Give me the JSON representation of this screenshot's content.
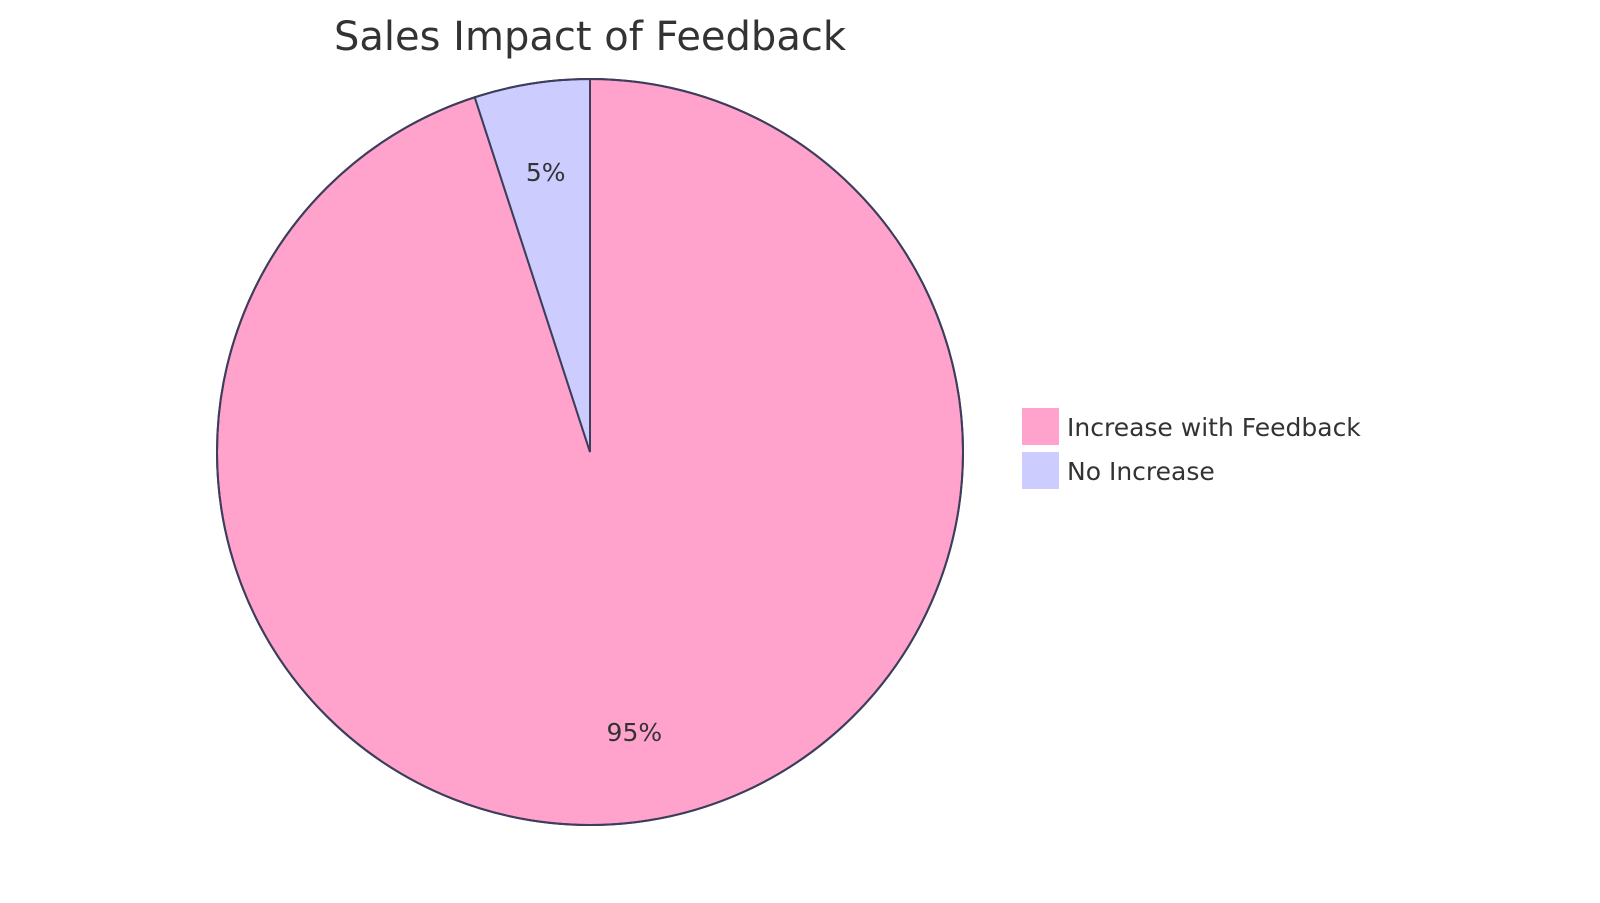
{
  "chart_data": {
    "type": "pie",
    "title": "Sales Impact of Feedback",
    "slices": [
      {
        "label": "Increase with Feedback",
        "value": 95,
        "display": "95%",
        "color": "#FFA3CC"
      },
      {
        "label": "No Increase",
        "value": 5,
        "display": "5%",
        "color": "#CCCCFF"
      }
    ],
    "outline_color": "#3D3D5C",
    "legend_position": "right",
    "start_angle": "top",
    "direction": "clockwise"
  }
}
